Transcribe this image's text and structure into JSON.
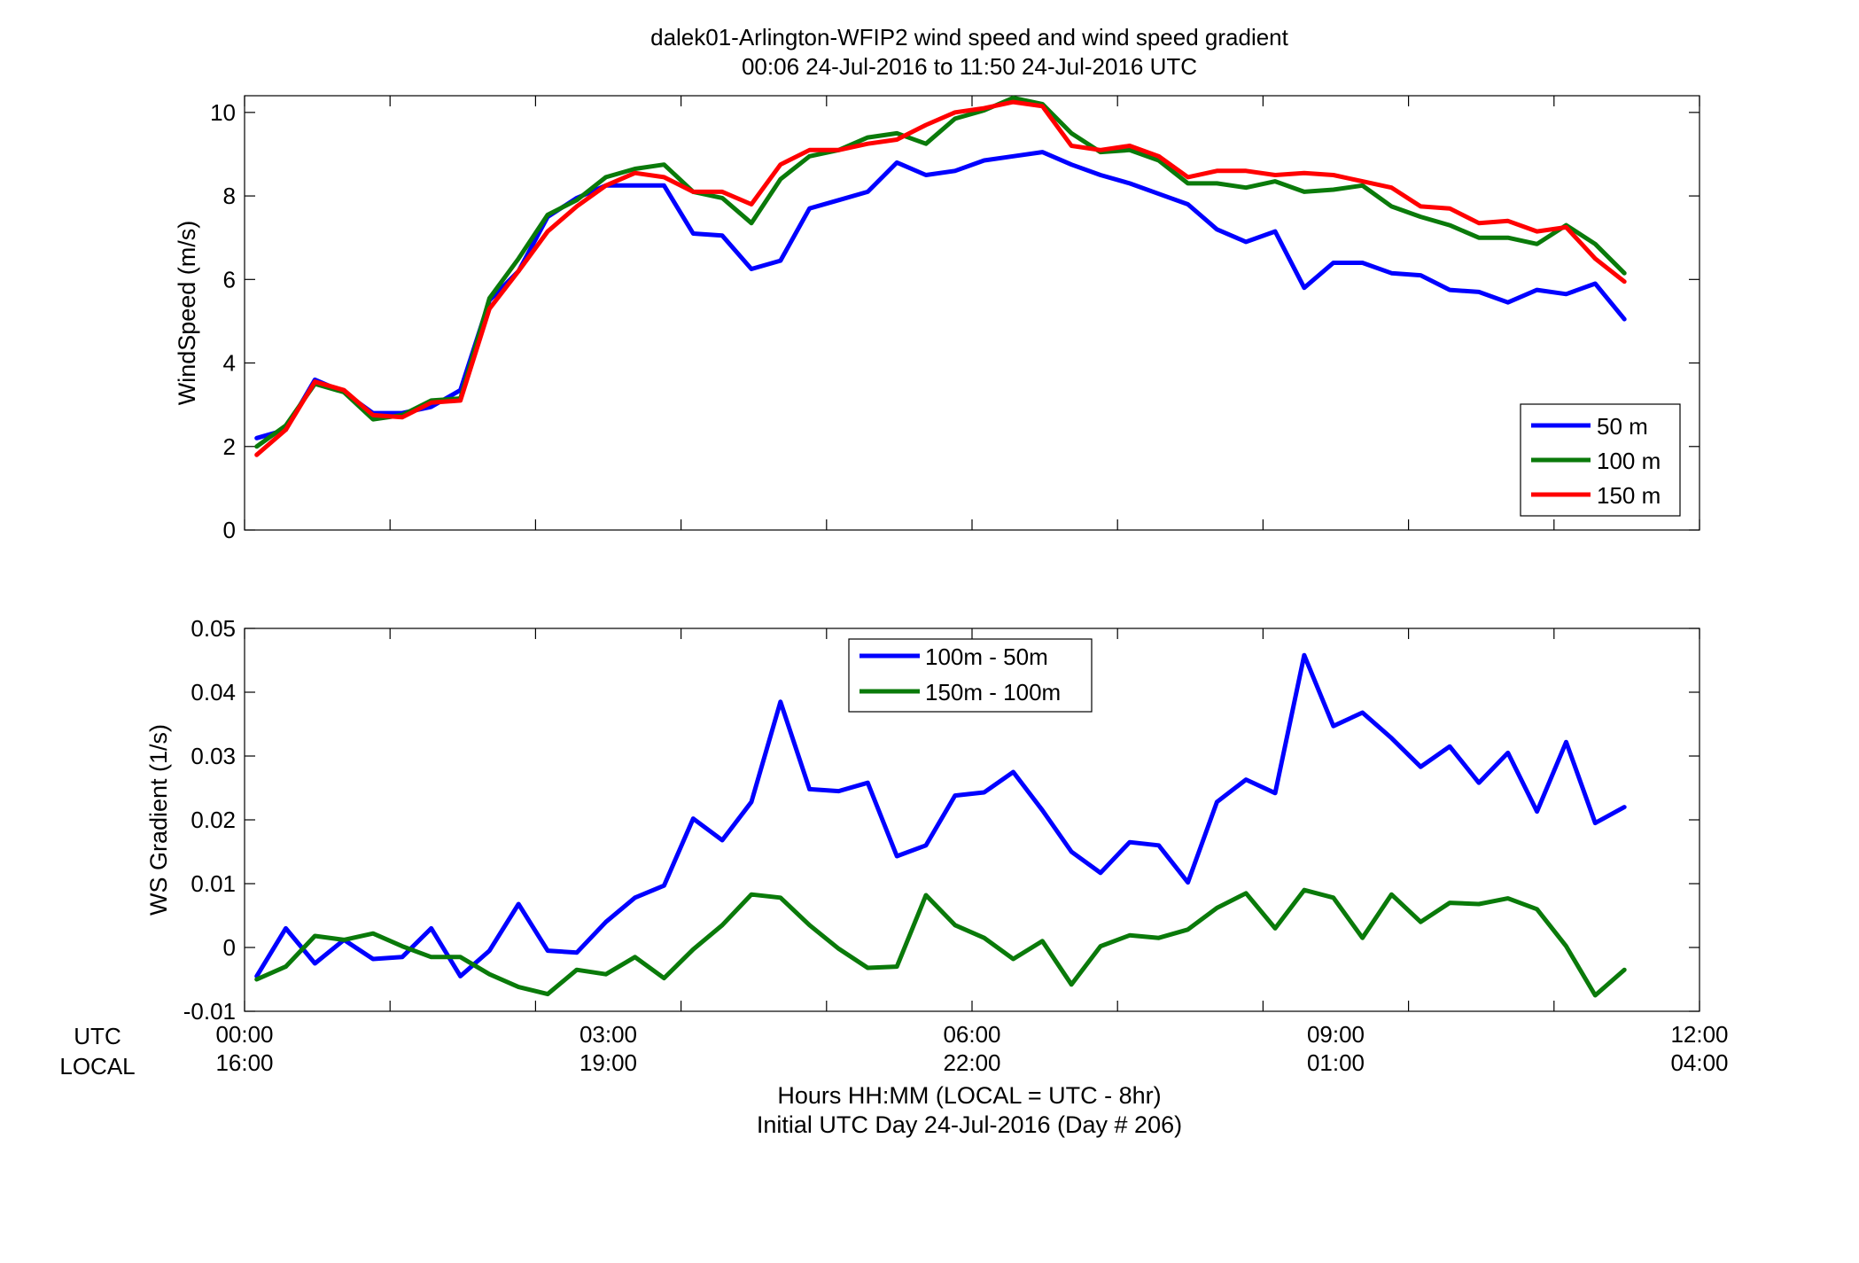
{
  "figure": {
    "title_line1": "dalek01-Arlington-WFIP2  wind speed and wind speed gradient",
    "title_line2": "00:06 24-Jul-2016 to 11:50 24-Jul-2016  UTC",
    "row_label_utc": "UTC",
    "row_label_local": "LOCAL",
    "xlabel_line1": "Hours HH:MM  (LOCAL = UTC - 8hr)",
    "xlabel_line2": "Initial UTC Day 24-Jul-2016 (Day # 206)"
  },
  "chart_data": [
    {
      "type": "line",
      "ylabel": "WindSpeed (m/s)",
      "xlim": [
        0,
        12
      ],
      "ylim": [
        0,
        10.4
      ],
      "yticks": [
        0,
        2,
        4,
        6,
        8,
        10
      ],
      "ytick_labels": [
        "0",
        "2",
        "4",
        "6",
        "8",
        "10"
      ],
      "xticks": [
        0,
        1.2,
        2.4,
        3.6,
        4.8,
        6,
        7.2,
        8.4,
        9.6,
        10.8,
        12
      ],
      "grid": false,
      "legend_position": "lower-right",
      "x_start": 0.1,
      "x_step": 0.24,
      "series": [
        {
          "name": "50 m",
          "color": "#0000ff",
          "values": [
            2.2,
            2.4,
            3.6,
            3.3,
            2.8,
            2.8,
            2.95,
            3.35,
            5.5,
            6.2,
            7.5,
            7.95,
            8.25,
            8.25,
            8.25,
            7.1,
            7.05,
            6.25,
            6.45,
            7.7,
            7.9,
            8.1,
            8.8,
            8.5,
            8.6,
            8.85,
            8.95,
            9.05,
            8.75,
            8.5,
            8.3,
            8.05,
            7.8,
            7.2,
            6.9,
            7.15,
            5.8,
            6.4,
            6.4,
            6.15,
            6.1,
            5.75,
            5.7,
            5.45,
            5.75,
            5.65,
            5.9,
            5.05
          ]
        },
        {
          "name": "100 m",
          "color": "#0a7a0a",
          "values": [
            2.0,
            2.5,
            3.5,
            3.3,
            2.65,
            2.75,
            3.1,
            3.15,
            5.55,
            6.5,
            7.55,
            7.9,
            8.45,
            8.65,
            8.75,
            8.1,
            7.95,
            7.35,
            8.4,
            8.95,
            9.1,
            9.4,
            9.5,
            9.25,
            9.85,
            10.05,
            10.35,
            10.2,
            9.5,
            9.05,
            9.1,
            8.85,
            8.3,
            8.3,
            8.2,
            8.35,
            8.1,
            8.15,
            8.25,
            7.75,
            7.5,
            7.3,
            7.0,
            7.0,
            6.85,
            7.3,
            6.85,
            6.15
          ]
        },
        {
          "name": "150 m",
          "color": "#ff0000",
          "values": [
            1.8,
            2.4,
            3.55,
            3.35,
            2.75,
            2.7,
            3.05,
            3.1,
            5.3,
            6.2,
            7.15,
            7.75,
            8.25,
            8.55,
            8.45,
            8.1,
            8.1,
            7.8,
            8.75,
            9.1,
            9.1,
            9.25,
            9.35,
            9.7,
            10.0,
            10.1,
            10.25,
            10.15,
            9.2,
            9.1,
            9.2,
            8.95,
            8.45,
            8.6,
            8.6,
            8.5,
            8.55,
            8.5,
            8.35,
            8.2,
            7.75,
            7.7,
            7.35,
            7.4,
            7.15,
            7.25,
            6.5,
            5.95
          ]
        }
      ]
    },
    {
      "type": "line",
      "ylabel": "WS Gradient (1/s)",
      "xlim": [
        0,
        12
      ],
      "ylim": [
        -0.01,
        0.05
      ],
      "yticks": [
        -0.01,
        0,
        0.01,
        0.02,
        0.03,
        0.04,
        0.05
      ],
      "ytick_labels": [
        "-0.01",
        "0",
        "0.01",
        "0.02",
        "0.03",
        "0.04",
        "0.05"
      ],
      "xticks": [
        0,
        1.2,
        2.4,
        3.6,
        4.8,
        6,
        7.2,
        8.4,
        9.6,
        10.8,
        12
      ],
      "xtick_labels_utc": [
        "00:00",
        "03:00",
        "06:00",
        "09:00",
        "12:00"
      ],
      "xtick_labels_local": [
        "16:00",
        "19:00",
        "22:00",
        "01:00",
        "04:00"
      ],
      "xtick_label_positions": [
        0,
        3,
        6,
        9,
        12
      ],
      "grid": false,
      "legend_position": "upper-center",
      "x_start": 0.1,
      "x_step": 0.24,
      "series": [
        {
          "name": "100m - 50m",
          "color": "#0000ff",
          "values": [
            -0.0045,
            0.003,
            -0.0025,
            0.0012,
            -0.0018,
            -0.0015,
            0.003,
            -0.0045,
            -0.0005,
            0.0068,
            -0.0005,
            -0.0008,
            0.004,
            0.0078,
            0.0097,
            0.0202,
            0.0168,
            0.0228,
            0.0385,
            0.0248,
            0.0245,
            0.0258,
            0.0143,
            0.016,
            0.0238,
            0.0243,
            0.0275,
            0.0215,
            0.015,
            0.0117,
            0.0165,
            0.016,
            0.0102,
            0.0228,
            0.0263,
            0.0242,
            0.0458,
            0.0347,
            0.0368,
            0.0328,
            0.0283,
            0.0315,
            0.0258,
            0.0305,
            0.0213,
            0.0322,
            0.0195,
            0.022
          ]
        },
        {
          "name": "150m - 100m",
          "color": "#0a7a0a",
          "values": [
            -0.005,
            -0.003,
            0.0018,
            0.0012,
            0.0022,
            0.0002,
            -0.0015,
            -0.0015,
            -0.0042,
            -0.0062,
            -0.0073,
            -0.0035,
            -0.0042,
            -0.0015,
            -0.0048,
            -0.0003,
            0.0035,
            0.0083,
            0.0078,
            0.0035,
            -0.0002,
            -0.0032,
            -0.003,
            0.0082,
            0.0035,
            0.0015,
            -0.0018,
            0.001,
            -0.0058,
            0.0002,
            0.0019,
            0.0015,
            0.0028,
            0.0062,
            0.0085,
            0.003,
            0.009,
            0.0078,
            0.0015,
            0.0083,
            0.004,
            0.007,
            0.0068,
            0.0077,
            0.006,
            0.0002,
            -0.0075,
            -0.0035
          ]
        }
      ]
    }
  ]
}
